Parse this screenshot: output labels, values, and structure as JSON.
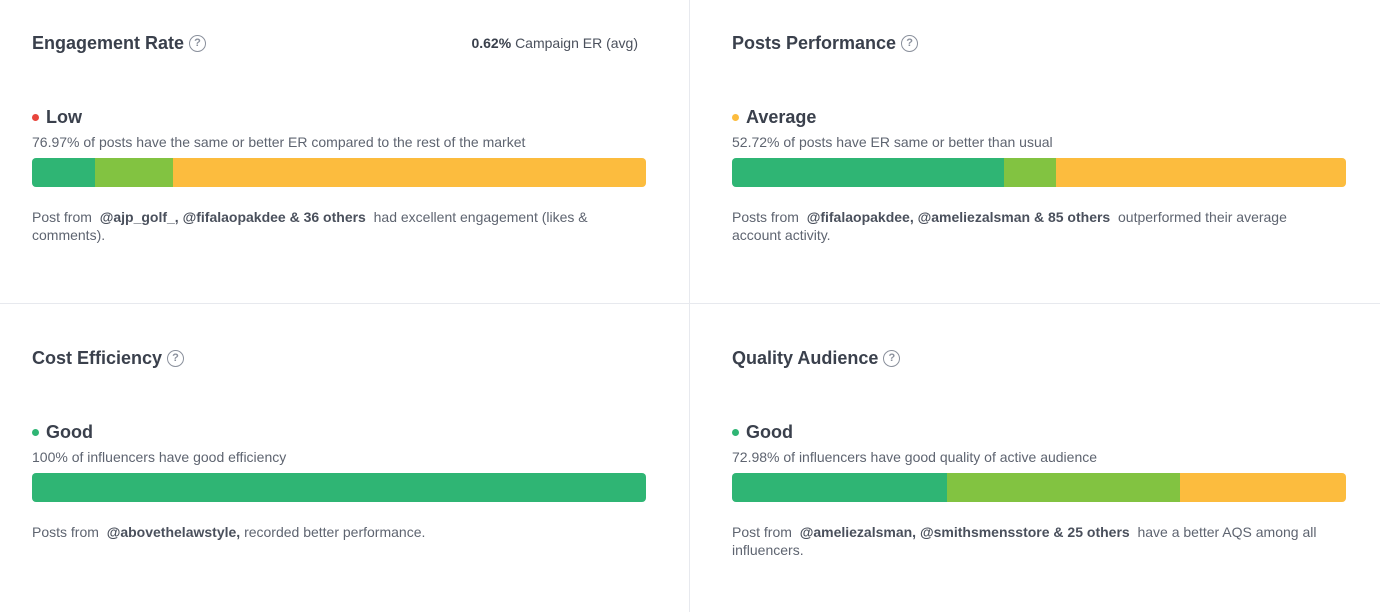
{
  "colors": {
    "green": "#2fb574",
    "lime": "#82c341",
    "amber": "#fcbc3e",
    "red": "#e8453c"
  },
  "cards": [
    {
      "title": "Engagement Rate",
      "help_icon": "?",
      "metric_value": "0.62%",
      "metric_label": "Campaign ER (avg)",
      "status": "Low",
      "status_color": "#e8453c",
      "description": "76.97% of posts have the same or better ER compared to the rest of the market",
      "bar": [
        {
          "color": "#2fb574",
          "fraction": 0.102
        },
        {
          "color": "#82c341",
          "fraction": 0.128
        },
        {
          "color": "#fcbc3e",
          "fraction": 0.77
        }
      ],
      "note": {
        "prefix": "Post from",
        "handles": "@ajp_golf_,  @fifalaopakdee & 36 others",
        "suffix": "had excellent engagement (likes & comments)."
      }
    },
    {
      "title": "Posts Performance",
      "help_icon": "?",
      "status": "Average",
      "status_color": "#fcbc3e",
      "description": "52.72% of posts have ER same or better than usual",
      "bar": [
        {
          "color": "#2fb574",
          "fraction": 0.443
        },
        {
          "color": "#82c341",
          "fraction": 0.085
        },
        {
          "color": "#fcbc3e",
          "fraction": 0.472
        }
      ],
      "note": {
        "prefix": "Posts from",
        "handles": "@fifalaopakdee,  @ameliezalsman & 85 others",
        "suffix": "outperformed their average account activity."
      }
    },
    {
      "title": "Cost Efficiency",
      "help_icon": "?",
      "status": "Good",
      "status_color": "#2fb574",
      "description": "100% of influencers have good efficiency",
      "bar": [
        {
          "color": "#2fb574",
          "fraction": 1.0
        }
      ],
      "note": {
        "prefix": "Posts from",
        "handles": "@abovethelawstyle,",
        "suffix": "recorded better performance."
      }
    },
    {
      "title": "Quality Audience",
      "help_icon": "?",
      "status": "Good",
      "status_color": "#2fb574",
      "description": "72.98% of influencers have good quality of active audience",
      "bar": [
        {
          "color": "#2fb574",
          "fraction": 0.35
        },
        {
          "color": "#82c341",
          "fraction": 0.38
        },
        {
          "color": "#fcbc3e",
          "fraction": 0.27
        }
      ],
      "note": {
        "prefix": "Post from",
        "handles": "@ameliezalsman,  @smithsmensstore & 25 others",
        "suffix": "have a better AQS among all influencers."
      }
    }
  ]
}
